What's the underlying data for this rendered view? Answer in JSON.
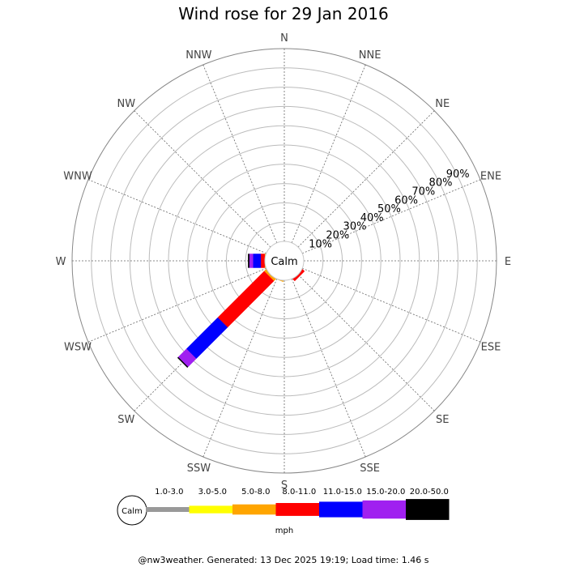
{
  "chart_data": {
    "type": "wind-rose",
    "title": "Wind rose for 29 Jan 2016",
    "directions": [
      "N",
      "NNE",
      "NE",
      "ENE",
      "E",
      "ESE",
      "SE",
      "SSE",
      "S",
      "SSW",
      "SW",
      "WSW",
      "W",
      "WNW",
      "NW",
      "NNW"
    ],
    "ring_labels": [
      "10%",
      "20%",
      "30%",
      "40%",
      "50%",
      "60%",
      "70%",
      "80%",
      "90%"
    ],
    "radial_max": 100,
    "calm_label": "Calm",
    "speed_bins": [
      {
        "label": "1.0-3.0",
        "color": "#999999"
      },
      {
        "label": "3.0-5.0",
        "color": "#ffff00"
      },
      {
        "label": "5.0-8.0",
        "color": "#ffa500"
      },
      {
        "label": "8.0-11.0",
        "color": "#ff0000"
      },
      {
        "label": "11.0-15.0",
        "color": "#0000ff"
      },
      {
        "label": "15.0-20.0",
        "color": "#a020f0"
      },
      {
        "label": "20.0-50.0",
        "color": "#000000"
      }
    ],
    "units": "mph",
    "frequencies": [
      {
        "direction": "SSW",
        "values": [
          0,
          0,
          1,
          0,
          0,
          0,
          0
        ]
      },
      {
        "direction": "SW",
        "values": [
          0,
          0,
          2,
          34,
          23,
          6,
          0.5
        ]
      },
      {
        "direction": "WSW",
        "values": [
          0,
          0,
          0,
          0,
          0,
          0,
          0
        ]
      },
      {
        "direction": "W",
        "values": [
          0,
          0,
          1,
          2,
          4,
          2,
          0.5
        ]
      },
      {
        "direction": "SE",
        "values": [
          0,
          0,
          0,
          2,
          0,
          0,
          0
        ]
      },
      {
        "direction": "SSE",
        "values": [
          0,
          0,
          0,
          0,
          0,
          0,
          0
        ]
      }
    ]
  },
  "footer": "@nw3weather. Generated: 13 Dec 2025 19:19; Load time: 1.46 s"
}
